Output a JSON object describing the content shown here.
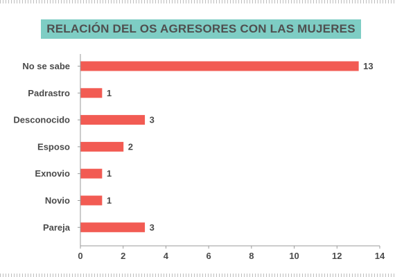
{
  "chart_data": {
    "type": "bar",
    "orientation": "horizontal",
    "title": "RELACIÓN DEL OS AGRESORES CON LAS MUJERES",
    "categories": [
      "No se sabe",
      "Padrastro",
      "Desconocido",
      "Esposo",
      "Exnovio",
      "Novio",
      "Pareja"
    ],
    "values": [
      13,
      1,
      3,
      2,
      1,
      1,
      3
    ],
    "xlim": [
      0,
      14
    ],
    "xticks": [
      0,
      2,
      4,
      6,
      8,
      10,
      12,
      14
    ],
    "xlabel": "",
    "ylabel": "",
    "data_labels": true,
    "grid": false,
    "legend": "none",
    "bar_color": "#f25b53",
    "title_background": "#7ecdc4"
  }
}
